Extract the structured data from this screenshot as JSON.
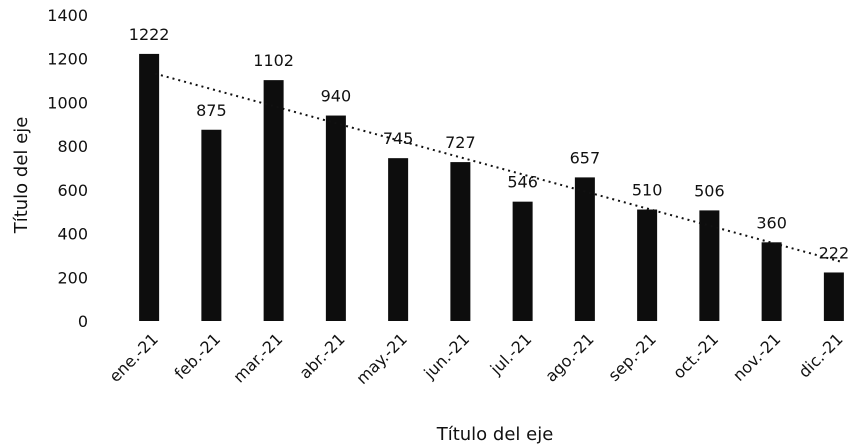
{
  "chart_data": {
    "type": "bar",
    "title": "",
    "xlabel": "Título del eje",
    "ylabel": "Título del eje",
    "categories": [
      "ene.-21",
      "feb.-21",
      "mar.-21",
      "abr.-21",
      "may.-21",
      "jun.-21",
      "jul.-21",
      "ago.-21",
      "sep.-21",
      "oct.-21",
      "nov.-21",
      "dic.-21"
    ],
    "values": [
      1222,
      875,
      1102,
      940,
      745,
      727,
      546,
      657,
      510,
      506,
      360,
      222
    ],
    "ylim": [
      0,
      1400
    ],
    "yticks": [
      0,
      200,
      400,
      600,
      800,
      1000,
      1200,
      1400
    ],
    "data_labels": true,
    "trendline": "linear",
    "grid": false,
    "legend": "none",
    "bar_color": "#0d0d0d"
  }
}
